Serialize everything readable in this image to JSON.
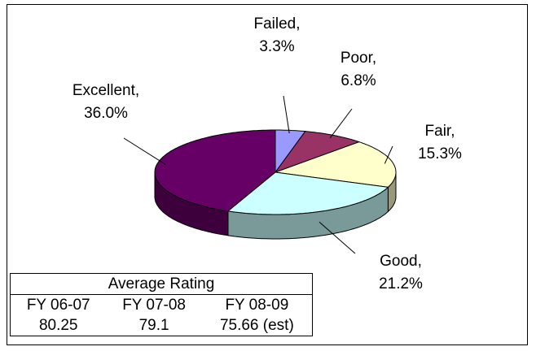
{
  "chart_data": {
    "type": "pie3d",
    "categories": [
      "Failed,",
      "Poor,",
      "Fair,",
      "Good,",
      "Excellent,"
    ],
    "values": [
      3.3,
      6.8,
      15.3,
      21.2,
      36.0
    ],
    "value_labels": [
      "3.3%",
      "6.8%",
      "15.3%",
      "21.2%",
      "36.0%"
    ],
    "colors": [
      "#9999ff",
      "#993366",
      "#ffffcc",
      "#ccffff",
      "#660066"
    ],
    "table": {
      "title": "Average Rating",
      "headers": [
        "FY 06-07",
        "FY 07-08",
        "FY 08-09"
      ],
      "values": [
        80.25,
        79.1,
        "75.66 (est)"
      ]
    }
  }
}
